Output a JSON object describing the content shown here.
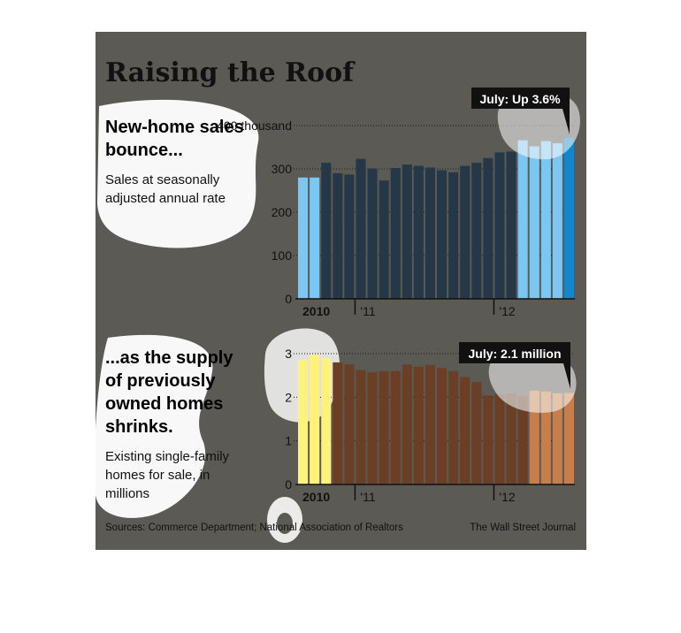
{
  "header": {
    "title": "Raising the Roof"
  },
  "top_panel": {
    "headline": [
      "New-home sales",
      "bounce..."
    ],
    "description": [
      "Sales at seasonally",
      "adjusted annual rate"
    ],
    "callout": "July: Up 3.6%"
  },
  "bottom_panel": {
    "headline": [
      "...as the supply",
      "of previously",
      "owned homes",
      "shrinks."
    ],
    "description": [
      "Existing single-family",
      "homes for sale, in",
      "millions"
    ],
    "callout": "July: 2.1 million"
  },
  "footer": {
    "sources": "Sources: Commerce Department; National Association of Realtors",
    "credit": "The Wall Street Journal"
  },
  "colors": {
    "background": "#5b5a55",
    "top_bar": "#263847",
    "top_bar_highlight": "#7cc6f2",
    "top_bar_latest": "#1487cc",
    "bottom_bar": "#6a3f25",
    "bottom_bar_highlight": "#fff27a",
    "bottom_bar_light": "#c87e4a",
    "text": "#ffffff",
    "title": "#111111"
  },
  "chart_data": [
    {
      "type": "bar",
      "title": "",
      "xlabel": "",
      "ylabel": "",
      "y_tick_labels": [
        "0",
        "100",
        "200",
        "300",
        "400 thousand"
      ],
      "x_tick_labels": [
        "2010",
        "'11",
        "'12"
      ],
      "ylim": [
        0,
        400
      ],
      "grid": true,
      "categories": [
        "Aug 2010",
        "Sep 2010",
        "Oct 2010",
        "Nov 2010",
        "Dec 2010",
        "Jan 2011",
        "Feb 2011",
        "Mar 2011",
        "Apr 2011",
        "May 2011",
        "Jun 2011",
        "Jul 2011",
        "Aug 2011",
        "Sep 2011",
        "Oct 2011",
        "Nov 2011",
        "Dec 2011",
        "Jan 2012",
        "Feb 2012",
        "Mar 2012",
        "Apr 2012",
        "May 2012",
        "Jun 2012",
        "Jul 2012"
      ],
      "values": [
        280,
        280,
        314,
        290,
        287,
        323,
        301,
        273,
        302,
        310,
        307,
        303,
        297,
        292,
        307,
        314,
        325,
        338,
        340,
        366,
        352,
        364,
        359,
        372
      ]
    },
    {
      "type": "bar",
      "title": "",
      "xlabel": "",
      "ylabel": "",
      "y_tick_labels": [
        "0",
        "1",
        "2",
        "3"
      ],
      "x_tick_labels": [
        "2010",
        "'11",
        "'12"
      ],
      "ylim": [
        0,
        3
      ],
      "grid": true,
      "categories": [
        "Aug 2010",
        "Sep 2010",
        "Oct 2010",
        "Nov 2010",
        "Dec 2010",
        "Jan 2011",
        "Feb 2011",
        "Mar 2011",
        "Apr 2011",
        "May 2011",
        "Jun 2011",
        "Jul 2011",
        "Aug 2011",
        "Sep 2011",
        "Oct 2011",
        "Nov 2011",
        "Dec 2011",
        "Jan 2012",
        "Feb 2012",
        "Mar 2012",
        "Apr 2012",
        "May 2012",
        "Jun 2012",
        "Jul 2012"
      ],
      "values": [
        2.85,
        2.97,
        2.89,
        2.8,
        2.75,
        2.62,
        2.57,
        2.6,
        2.6,
        2.75,
        2.7,
        2.74,
        2.67,
        2.6,
        2.46,
        2.35,
        2.04,
        2.07,
        2.09,
        2.04,
        2.15,
        2.13,
        2.09,
        2.1
      ]
    }
  ]
}
